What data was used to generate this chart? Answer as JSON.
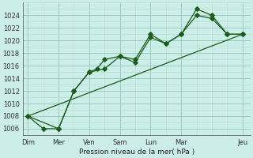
{
  "background_color": "#cceee8",
  "grid_major_color": "#99ccbb",
  "grid_minor_color": "#bbddcc",
  "line_color": "#1a5c1a",
  "xlabel_text": "Pression niveau de la mer( hPa )",
  "x_tick_labels": [
    "Dim",
    "Mer",
    "Ven",
    "Sam",
    "Lun",
    "Mar",
    "Jeu"
  ],
  "x_tick_positions": [
    0,
    2,
    4,
    6,
    8,
    10,
    14
  ],
  "ylim": [
    1005.0,
    1026.0
  ],
  "yticks": [
    1006,
    1008,
    1010,
    1012,
    1014,
    1016,
    1018,
    1020,
    1022,
    1024
  ],
  "xlim": [
    -0.3,
    14.5
  ],
  "line1_x": [
    0,
    1,
    2,
    3,
    4,
    4.5,
    5,
    6,
    7,
    8,
    9,
    10,
    11,
    12,
    13,
    14
  ],
  "line1_y": [
    1008,
    1006,
    1006,
    1012,
    1015,
    1015.5,
    1017,
    1017.5,
    1017,
    1021,
    1019.5,
    1021,
    1025,
    1024,
    1021,
    1021
  ],
  "line2_x": [
    0,
    2,
    3,
    4,
    5,
    6,
    7,
    8,
    9,
    10,
    11,
    12,
    13,
    14
  ],
  "line2_y": [
    1008,
    1006,
    1012,
    1015,
    1015.5,
    1017.5,
    1016.5,
    1020.5,
    1019.5,
    1021,
    1024,
    1023.5,
    1021,
    1021
  ],
  "line3_x": [
    0,
    14
  ],
  "line3_y": [
    1008,
    1021
  ],
  "figsize": [
    3.2,
    2.0
  ],
  "dpi": 100
}
